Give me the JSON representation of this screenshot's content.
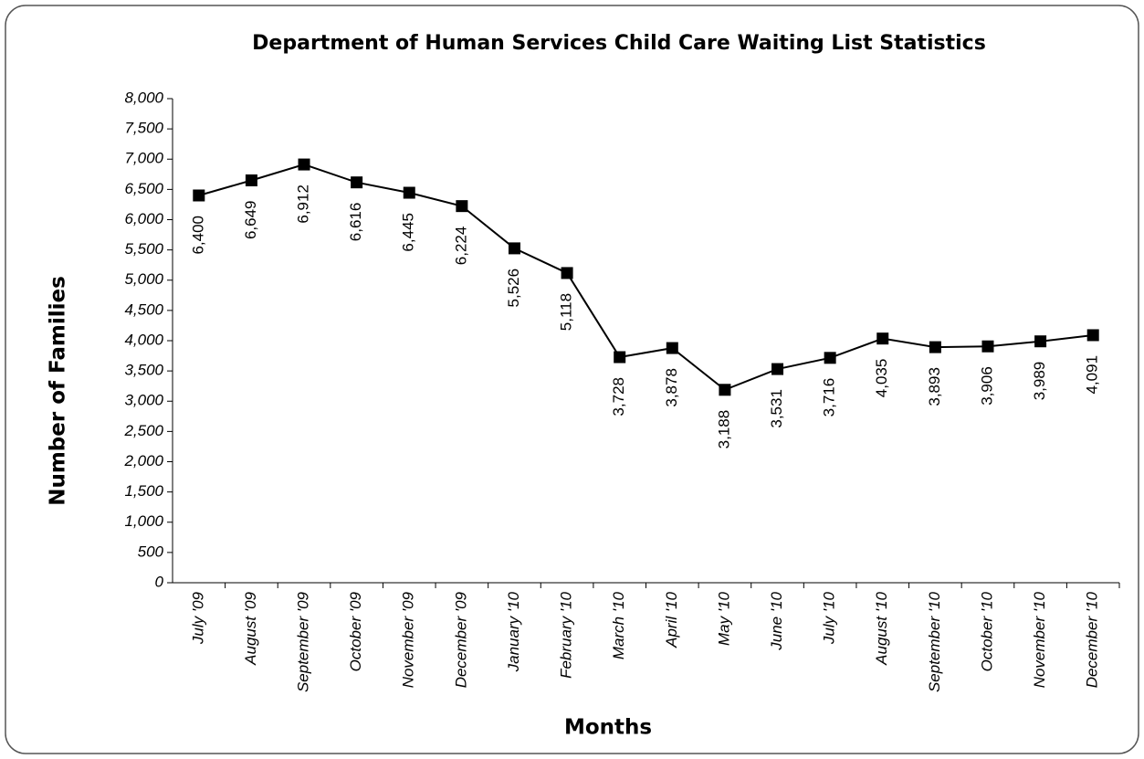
{
  "chart_data": {
    "type": "line",
    "title": "Department of Human Services Child Care Waiting List Statistics",
    "x_label": "Months",
    "y_label": "Number of Families",
    "categories": [
      "July '09",
      "August '09",
      "September '09",
      "October '09",
      "November '09",
      "December '09",
      "January '10",
      "February '10",
      "March '10",
      "April '10",
      "May '10",
      "June '10",
      "July '10",
      "August '10",
      "September '10",
      "October '10",
      "November '10",
      "December '10"
    ],
    "series": [
      {
        "name": "Number of Families",
        "color": "#000000",
        "values": [
          6400,
          6649,
          6912,
          6616,
          6445,
          6224,
          5526,
          5118,
          3728,
          3878,
          3188,
          3531,
          3716,
          4035,
          3893,
          3906,
          3989,
          4091
        ],
        "value_labels": [
          "6,400",
          "6,649",
          "6,912",
          "6,616",
          "6,445",
          "6,224",
          "5,526",
          "5,118",
          "3,728",
          "3,878",
          "3,188",
          "3,531",
          "3,716",
          "4,035",
          "3,893",
          "3,906",
          "3,989",
          "4,091"
        ]
      }
    ],
    "ylim": [
      0,
      8000
    ],
    "yticks": [
      0,
      500,
      {
        "value": 1000,
        "label": "1,000"
      },
      {
        "value": 1500,
        "label": "1,500"
      },
      {
        "value": 2000,
        "label": "2,000"
      },
      {
        "value": 2500,
        "label": "2,500"
      },
      {
        "value": 3000,
        "label": "3,000"
      },
      {
        "value": 3500,
        "label": "3,500"
      },
      {
        "value": 4000,
        "label": "4,000"
      },
      {
        "value": 4500,
        "label": "4,500"
      },
      {
        "value": 5000,
        "label": "5,000"
      },
      {
        "value": 5500,
        "label": "5,500"
      },
      {
        "value": 6000,
        "label": "6,000"
      },
      {
        "value": 6500,
        "label": "6,500"
      },
      {
        "value": 7000,
        "label": "7,000"
      },
      {
        "value": 7500,
        "label": "7,500"
      },
      {
        "value": 8000,
        "label": "8,000"
      }
    ],
    "grid": false
  }
}
